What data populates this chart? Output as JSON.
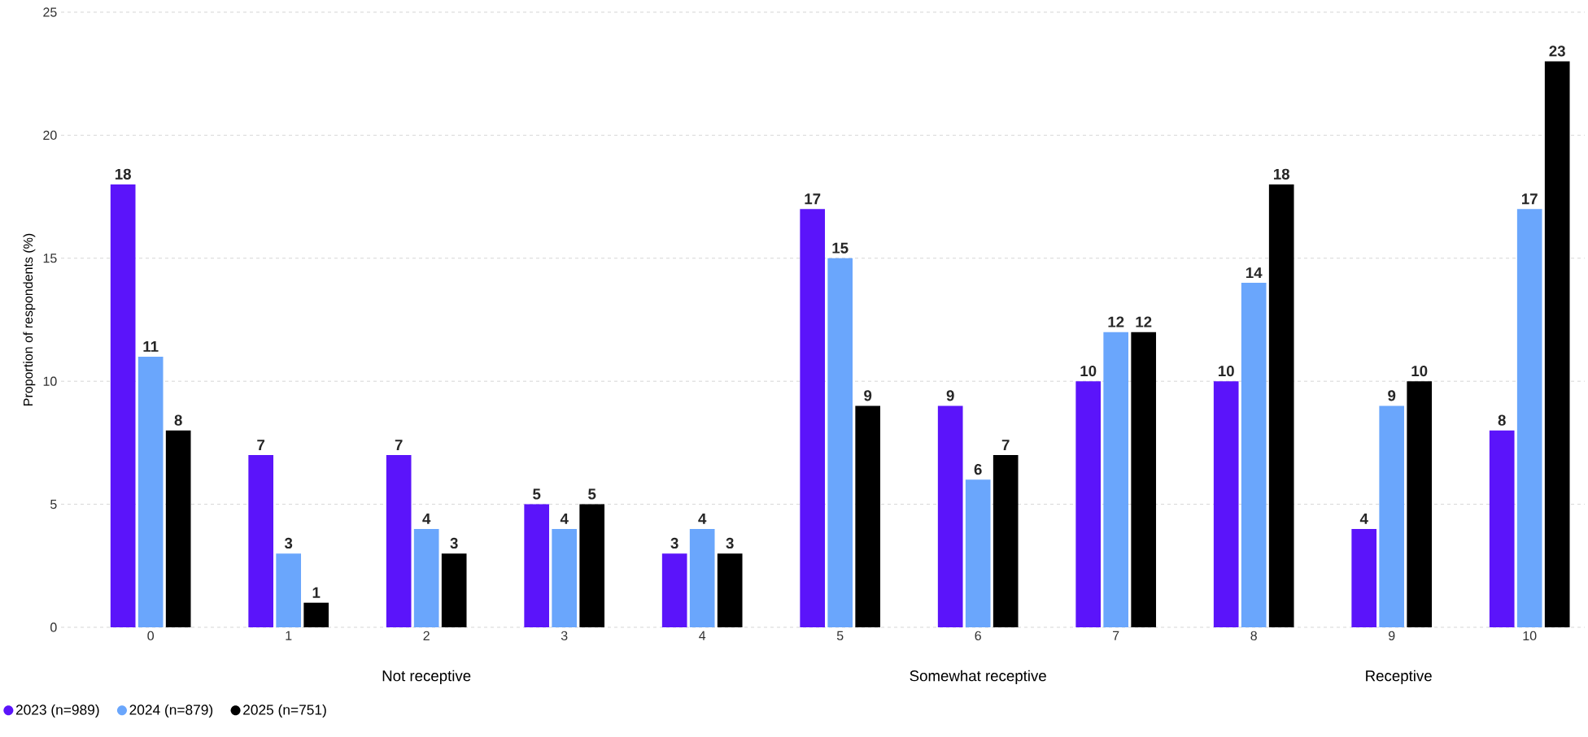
{
  "chart_data": {
    "type": "bar",
    "ylabel": "Proportion of respondents (%)",
    "categories": [
      "0",
      "1",
      "2",
      "3",
      "4",
      "5",
      "6",
      "7",
      "8",
      "9",
      "10"
    ],
    "series": [
      {
        "name": "2023 (n=989)",
        "color": "#5b14fa",
        "values": [
          18,
          7,
          7,
          5,
          3,
          17,
          9,
          10,
          10,
          4,
          8
        ]
      },
      {
        "name": "2024 (n=879)",
        "color": "#6aa6fc",
        "values": [
          11,
          3,
          4,
          4,
          4,
          15,
          6,
          12,
          14,
          9,
          17
        ]
      },
      {
        "name": "2025 (n=751)",
        "color": "#000000",
        "values": [
          8,
          1,
          3,
          5,
          3,
          9,
          7,
          12,
          18,
          10,
          23
        ]
      }
    ],
    "ylim": [
      0,
      25
    ],
    "yticks": [
      0,
      5,
      10,
      15,
      20,
      25
    ],
    "grid": "y",
    "legend": "bottom left",
    "data_labels": true,
    "annotations": [
      "Not receptive",
      "Somewhat receptive",
      "Receptive"
    ]
  }
}
